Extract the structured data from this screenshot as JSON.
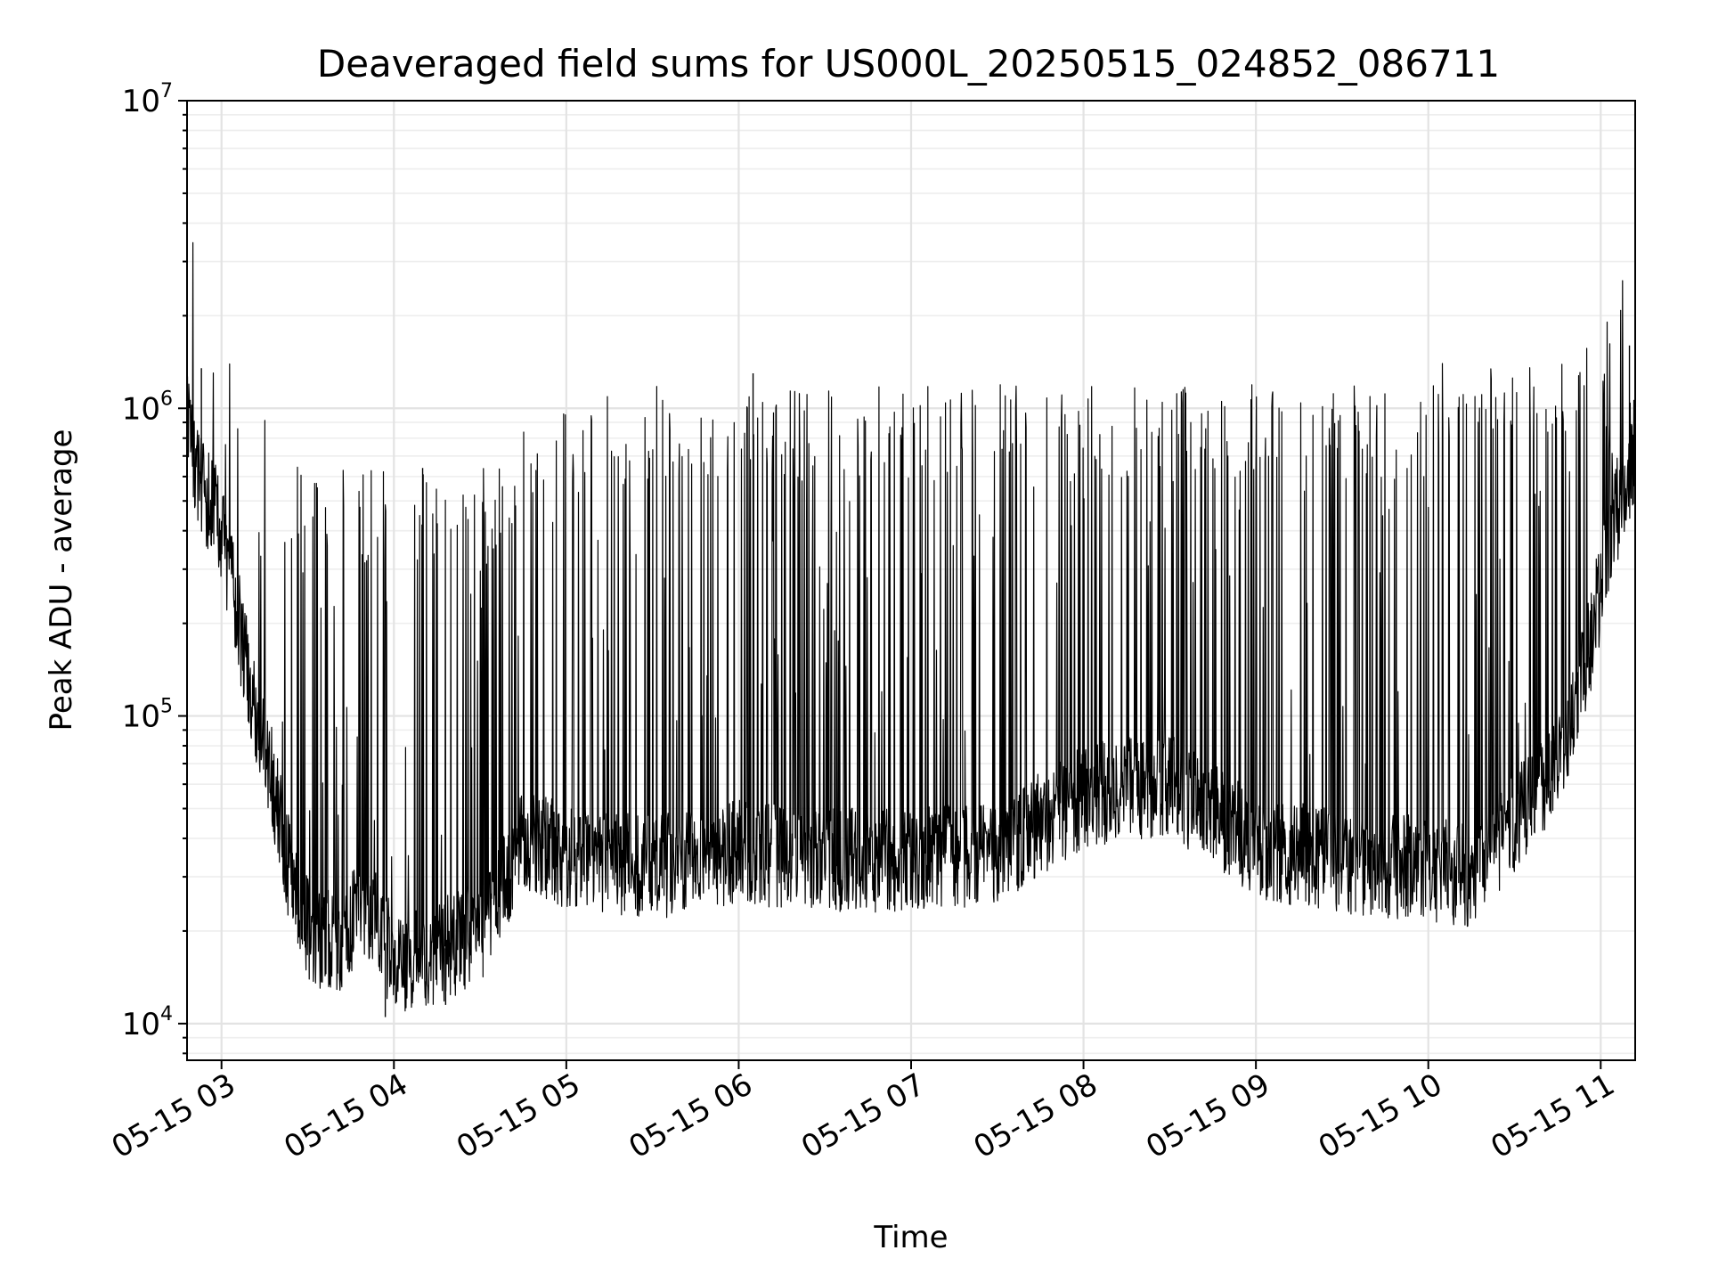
{
  "chart_data": {
    "type": "line",
    "title": "Deaveraged field sums for US000L_20250515_024852_086711",
    "xlabel": "Time",
    "ylabel": "Peak ADU - average",
    "yscale": "log",
    "grid": true,
    "xlim": [
      "2025-05-15 02:48",
      "2025-05-15 11:12"
    ],
    "ylim": [
      7600,
      10000000
    ],
    "x_ticks": [
      {
        "value": "2025-05-15 03:00",
        "label": "05-15 03"
      },
      {
        "value": "2025-05-15 04:00",
        "label": "05-15 04"
      },
      {
        "value": "2025-05-15 05:00",
        "label": "05-15 05"
      },
      {
        "value": "2025-05-15 06:00",
        "label": "05-15 06"
      },
      {
        "value": "2025-05-15 07:00",
        "label": "05-15 07"
      },
      {
        "value": "2025-05-15 08:00",
        "label": "05-15 08"
      },
      {
        "value": "2025-05-15 09:00",
        "label": "05-15 09"
      },
      {
        "value": "2025-05-15 10:00",
        "label": "05-15 10"
      },
      {
        "value": "2025-05-15 11:00",
        "label": "05-15 11"
      }
    ],
    "y_ticks": [
      {
        "value": 10000,
        "base": "10",
        "exp": "4"
      },
      {
        "value": 100000,
        "base": "10",
        "exp": "5"
      },
      {
        "value": 1000000,
        "base": "10",
        "exp": "6"
      },
      {
        "value": 10000000,
        "base": "10",
        "exp": "7"
      }
    ],
    "series": [
      {
        "style": {
          "color": "#000000"
        },
        "baseline": {
          "x": [
            "2025-05-15 02:48",
            "2025-05-15 02:52",
            "2025-05-15 03:00",
            "2025-05-15 03:06",
            "2025-05-15 03:12",
            "2025-05-15 03:18",
            "2025-05-15 03:24",
            "2025-05-15 03:30",
            "2025-05-15 03:40",
            "2025-05-15 03:50",
            "2025-05-15 04:00",
            "2025-05-15 04:15",
            "2025-05-15 04:30",
            "2025-05-15 04:45",
            "2025-05-15 05:00",
            "2025-05-15 05:30",
            "2025-05-15 06:00",
            "2025-05-15 06:30",
            "2025-05-15 07:00",
            "2025-05-15 07:30",
            "2025-05-15 08:00",
            "2025-05-15 08:30",
            "2025-05-15 09:00",
            "2025-05-15 09:30",
            "2025-05-15 10:00",
            "2025-05-15 10:15",
            "2025-05-15 10:30",
            "2025-05-15 10:45",
            "2025-05-15 10:55",
            "2025-05-15 11:05",
            "2025-05-15 11:12"
          ],
          "y": [
            900000,
            600000,
            400000,
            200000,
            100000,
            60000,
            30000,
            20000,
            18000,
            25000,
            16000,
            17000,
            20000,
            40000,
            35000,
            32000,
            36000,
            34000,
            34000,
            36000,
            55000,
            60000,
            38000,
            33000,
            32000,
            30000,
            45000,
            70000,
            150000,
            450000,
            650000
          ]
        },
        "spike_bands": [
          {
            "from": "2025-05-15 03:24",
            "to": "2025-05-15 04:45",
            "peak": 650000
          },
          {
            "from": "2025-05-15 04:45",
            "to": "2025-05-15 05:30",
            "peak": 1100000
          },
          {
            "from": "2025-05-15 05:30",
            "to": "2025-05-15 10:00",
            "peak": 1200000
          },
          {
            "from": "2025-05-15 10:00",
            "to": "2025-05-15 11:12",
            "peak": 1400000
          }
        ],
        "noted_peaks": [
          {
            "x": "2025-05-15 02:53",
            "y": 1350000
          },
          {
            "x": "2025-05-15 04:10",
            "y": 640000
          },
          {
            "x": "2025-05-15 06:05",
            "y": 1300000
          },
          {
            "x": "2025-05-15 11:10",
            "y": 1600000
          }
        ],
        "noted_minima": [
          {
            "x": "2025-05-15 03:57",
            "y": 10500
          },
          {
            "x": "2025-05-15 04:18",
            "y": 11500
          }
        ]
      }
    ]
  }
}
